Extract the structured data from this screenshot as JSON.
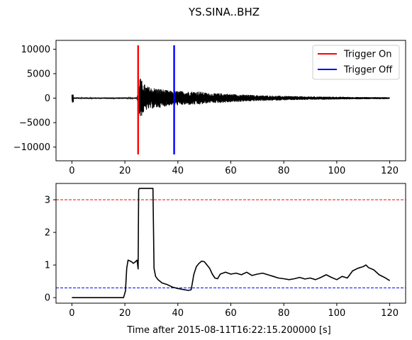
{
  "figure": {
    "title": "YS.SINA..BHZ"
  },
  "chart_data": [
    {
      "type": "line",
      "title": "YS.SINA..BHZ",
      "xlabel": "",
      "ylabel": "",
      "xlim": [
        -6,
        126
      ],
      "ylim": [
        -12800,
        11800
      ],
      "xticks": [
        0,
        20,
        40,
        60,
        80,
        100,
        120
      ],
      "xtick_labels": [
        "0",
        "20",
        "40",
        "60",
        "80",
        "100",
        "120"
      ],
      "yticks": [
        -10000,
        -5000,
        0,
        5000,
        10000
      ],
      "ytick_labels": [
        "−10000",
        "−5000",
        "0",
        "5000",
        "10000"
      ],
      "grid": false,
      "legend_position": "top-right",
      "series": [
        {
          "name": "",
          "color": "#000000",
          "description": "seismogram trace",
          "envelope": [
            [
              0,
              150
            ],
            [
              1,
              150
            ],
            [
              24.5,
              150
            ],
            [
              25,
              1500
            ],
            [
              25.5,
              4500
            ],
            [
              26.5,
              3500
            ],
            [
              28,
              2500
            ],
            [
              30,
              2200
            ],
            [
              33,
              2000
            ],
            [
              37,
              1500
            ],
            [
              40,
              1500
            ],
            [
              44,
              1400
            ],
            [
              48,
              1400
            ],
            [
              52,
              1000
            ],
            [
              56,
              1000
            ],
            [
              62,
              800
            ],
            [
              70,
              600
            ],
            [
              80,
              450
            ],
            [
              90,
              350
            ],
            [
              100,
              280
            ],
            [
              110,
              220
            ],
            [
              120,
              200
            ]
          ]
        },
        {
          "name": "Trigger On",
          "color": "#ff0000",
          "type": "vline",
          "x": 25.0,
          "y_range": [
            -11500,
            10800
          ]
        },
        {
          "name": "Trigger Off",
          "color": "#0000ff",
          "type": "vline",
          "x": 38.6,
          "y_range": [
            -11500,
            10800
          ]
        }
      ],
      "legend": [
        "Trigger On",
        "Trigger Off"
      ]
    },
    {
      "type": "line",
      "title": "",
      "xlabel": "Time after 2015-08-11T16:22:15.200000 [s]",
      "ylabel": "",
      "xlim": [
        -6,
        126
      ],
      "ylim": [
        -0.17,
        3.5
      ],
      "xticks": [
        0,
        20,
        40,
        60,
        80,
        100,
        120
      ],
      "xtick_labels": [
        "0",
        "20",
        "40",
        "60",
        "80",
        "100",
        "120"
      ],
      "yticks": [
        0,
        1,
        2,
        3
      ],
      "ytick_labels": [
        "0",
        "1",
        "2",
        "3"
      ],
      "grid": false,
      "thresholds": [
        {
          "value": 3.0,
          "color": "#ff0000",
          "style": "dashed"
        },
        {
          "value": 0.3,
          "color": "#0000ff",
          "style": "dashed"
        }
      ],
      "series": [
        {
          "name": "",
          "color": "#000000",
          "x": [
            0,
            19.5,
            20.2,
            20.7,
            21.2,
            22.5,
            23.2,
            24.0,
            24.6,
            25.0,
            25.2,
            25.4,
            30.6,
            31.0,
            31.6,
            32.5,
            34,
            36,
            38,
            40,
            42,
            44,
            45,
            45.5,
            46,
            47,
            48,
            49,
            50,
            51,
            52,
            53,
            54,
            55,
            56,
            58,
            60,
            62,
            64,
            66,
            68,
            70,
            72,
            74,
            76,
            78,
            80,
            82,
            84,
            86,
            88,
            90,
            92,
            94,
            96,
            98,
            100,
            102,
            104,
            106,
            108,
            110,
            111,
            112,
            114,
            116,
            118,
            120
          ],
          "y": [
            0,
            0,
            0.2,
            0.9,
            1.15,
            1.1,
            1.05,
            1.1,
            1.15,
            0.88,
            3.3,
            3.35,
            3.35,
            0.9,
            0.65,
            0.55,
            0.45,
            0.4,
            0.32,
            0.28,
            0.25,
            0.22,
            0.24,
            0.45,
            0.7,
            0.95,
            1.05,
            1.12,
            1.1,
            1.0,
            0.9,
            0.72,
            0.6,
            0.58,
            0.72,
            0.78,
            0.72,
            0.75,
            0.7,
            0.78,
            0.68,
            0.72,
            0.75,
            0.7,
            0.65,
            0.6,
            0.58,
            0.55,
            0.58,
            0.62,
            0.57,
            0.6,
            0.55,
            0.62,
            0.7,
            0.62,
            0.55,
            0.65,
            0.6,
            0.82,
            0.9,
            0.95,
            1.0,
            0.92,
            0.85,
            0.7,
            0.62,
            0.52
          ]
        }
      ]
    }
  ]
}
